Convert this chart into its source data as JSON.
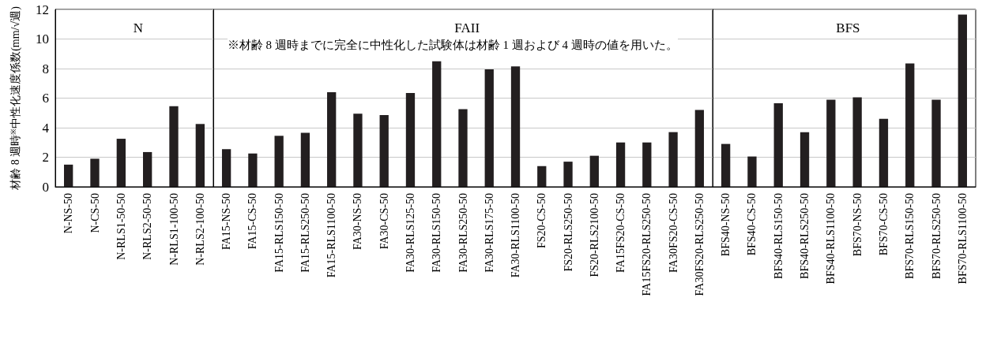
{
  "chart_data": [
    {
      "type": "bar",
      "title": "N",
      "ylabel": "材齢 8 週時$^{※}$中性化速度係数(mm/√週)",
      "categories": [
        "N-NS-50",
        "N-CS-50",
        "N-RLS1-50-50",
        "N-RLS2-50-50",
        "N-RLS1-100-50",
        "N-RLS2-100-50"
      ],
      "values": [
        1.5,
        1.9,
        3.25,
        2.35,
        5.45,
        4.25
      ],
      "color": "#231f20",
      "ylim": [
        0,
        12
      ],
      "yticks": [
        0,
        2,
        4,
        6,
        8,
        10,
        12
      ],
      "grid": "y"
    },
    {
      "type": "bar",
      "title": "FAII",
      "annotations": [
        "※材齢 8 週時までに完全に中性化した試験体は材齢 1 週および 4 週時の値を用いた。"
      ],
      "categories": [
        "FA15-NS-50",
        "FA15-CS-50",
        "FA15-RLS150-50",
        "FA15-RLS250-50",
        "FA15-RLS1100-50",
        "FA30-NS-50",
        "FA30-CS-50",
        "FA30-RLS125-50",
        "FA30-RLS150-50",
        "FA30-RLS250-50",
        "FA30-RLS175-50",
        "FA30-RLS1100-50",
        "FS20-CS-50",
        "FS20-RLS250-50",
        "FS20-RLS2100-50",
        "FA15FS20-CS-50",
        "FA15FS20-RLS250-50",
        "FA30FS20-CS-50",
        "FA30FS20-RLS250-50"
      ],
      "values": [
        2.55,
        2.25,
        3.45,
        3.65,
        6.4,
        4.95,
        4.85,
        6.35,
        8.5,
        5.25,
        7.95,
        8.15,
        1.4,
        1.7,
        2.1,
        3.0,
        3.0,
        3.7,
        5.2
      ],
      "color": "#231f20",
      "ylim": [
        0,
        12
      ],
      "grid": "y",
      "tick_labels": "x"
    },
    {
      "type": "bar",
      "title": "BFS",
      "categories": [
        "BFS40-NS-50",
        "BFS40-CS-50",
        "BFS40-RLS150-50",
        "BFS40-RLS250-50",
        "BFS40-RLS1100-50",
        "BFS70-NS-50",
        "BFS70-CS-50",
        "BFS70-RLS150-50",
        "BFS70-RLS250-50",
        "BFS70-RLS1100-50"
      ],
      "values": [
        2.9,
        2.05,
        5.65,
        3.7,
        5.9,
        6.05,
        4.6,
        8.35,
        5.9,
        11.65
      ],
      "color": "#231f20",
      "ylim": [
        0,
        12
      ],
      "grid": "y",
      "tick_labels": "x"
    }
  ]
}
